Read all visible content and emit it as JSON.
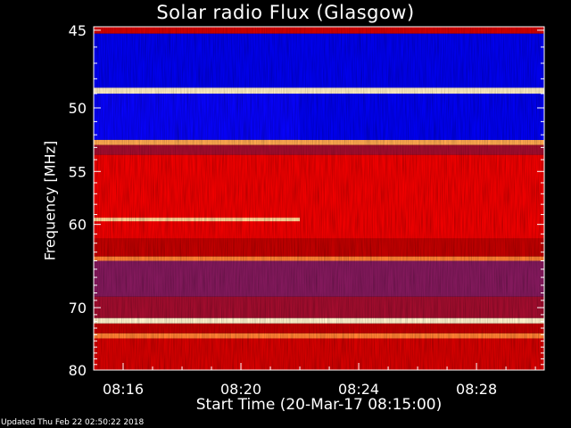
{
  "chart_data": {
    "type": "heatmap",
    "title": "Solar radio Flux (Glasgow)",
    "xlabel": "Start Time (20-Mar-17 08:15:00)",
    "ylabel": "Frequency [MHz]",
    "x_tick_labels": [
      "08:16",
      "08:20",
      "08:24",
      "08:28"
    ],
    "x_tick_minutes": [
      1,
      5,
      9,
      13
    ],
    "xlim_minutes": [
      0,
      15.3
    ],
    "y_tick_labels": [
      "45",
      "50",
      "55",
      "60",
      "70",
      "80"
    ],
    "y_ticks": [
      45,
      50,
      55,
      60,
      70,
      80
    ],
    "ylim": [
      44.8,
      80
    ],
    "y_scale": "reciprocal",
    "colormap": [
      "#000033",
      "#0000ff",
      "#5a2a9a",
      "#c00000",
      "#ff0000",
      "#ffa040",
      "#ffffe0"
    ],
    "bands": [
      {
        "f0": 44.8,
        "f1": 45.2,
        "level": 0.55
      },
      {
        "f0": 45.2,
        "f1": 48.6,
        "level": 0.15
      },
      {
        "f0": 48.6,
        "f1": 49.0,
        "level": 0.97
      },
      {
        "f0": 49.0,
        "f1": 52.4,
        "level": 0.18
      },
      {
        "f0": 52.4,
        "f1": 52.8,
        "level": 0.85
      },
      {
        "f0": 52.8,
        "f1": 53.6,
        "level": 0.45
      },
      {
        "f0": 53.6,
        "f1": 61.5,
        "level": 0.62
      },
      {
        "f0": 61.5,
        "f1": 63.5,
        "level": 0.5
      },
      {
        "f0": 63.5,
        "f1": 64.0,
        "level": 0.8
      },
      {
        "f0": 64.0,
        "f1": 68.5,
        "level": 0.4
      },
      {
        "f0": 68.5,
        "f1": 71.5,
        "level": 0.45
      },
      {
        "f0": 71.5,
        "f1": 72.3,
        "level": 0.98
      },
      {
        "f0": 72.3,
        "f1": 73.8,
        "level": 0.5
      },
      {
        "f0": 73.8,
        "f1": 74.6,
        "level": 0.8
      },
      {
        "f0": 74.6,
        "f1": 80.0,
        "level": 0.55
      }
    ],
    "features": [
      {
        "kind": "line",
        "f": 59.5,
        "t0": 0,
        "t1": 7.0,
        "level": 0.92
      },
      {
        "kind": "blue-block",
        "f0": 49.0,
        "f1": 52.4,
        "t0": 7.0,
        "t1": 15.3
      }
    ]
  },
  "footer": "Updated Thu Feb 22 02:50:22 2018"
}
